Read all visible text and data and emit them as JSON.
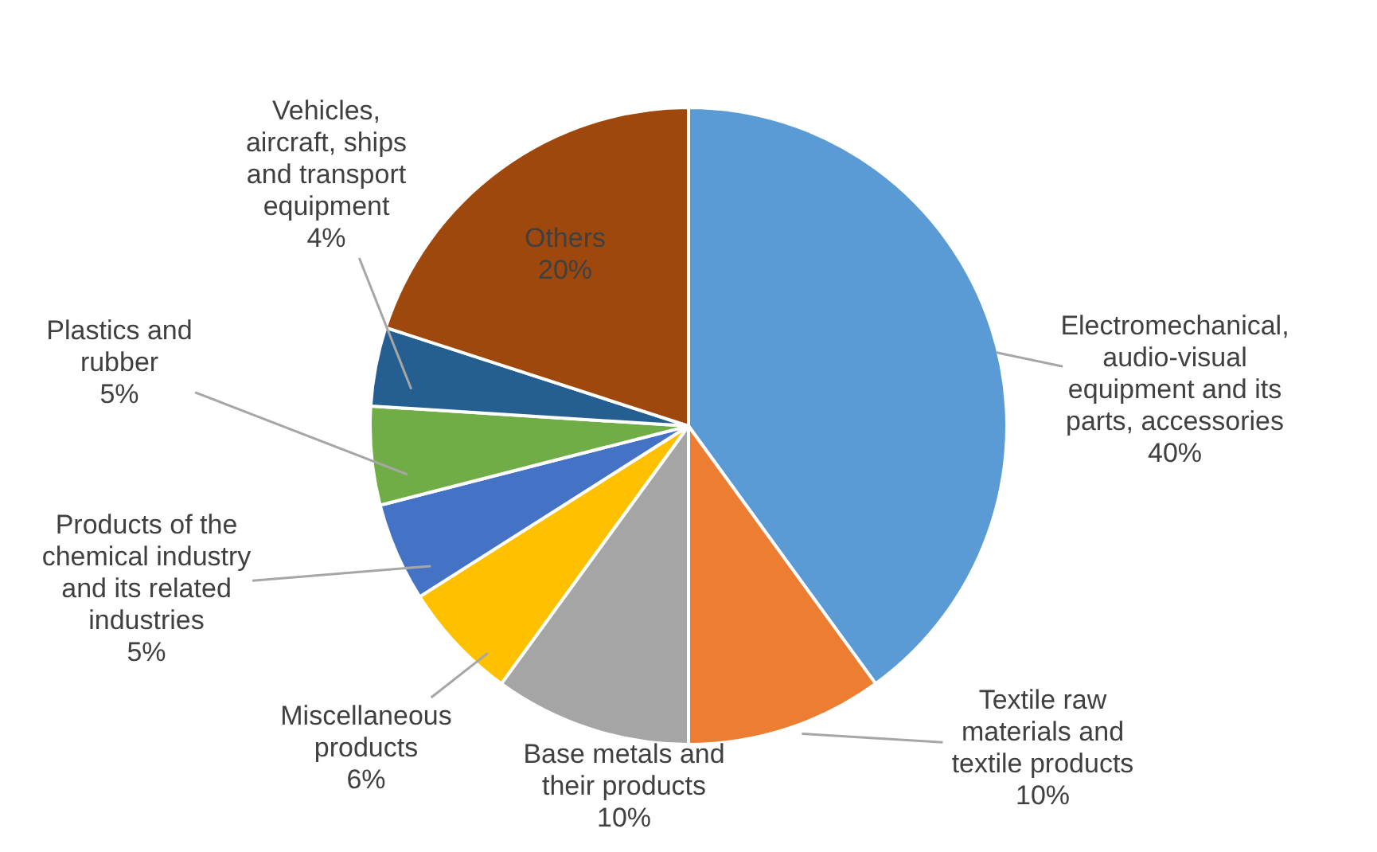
{
  "chart_data": {
    "type": "pie",
    "categories": [
      "Electromechanical, audio-visual equipment and its parts, accessories",
      "Textile raw materials and textile products",
      "Base metals and their products",
      "Miscellaneous products",
      "Products of the chemical industry and its related industries",
      "Plastics and rubber",
      "Vehicles, aircraft, ships and transport equipment",
      "Others"
    ],
    "values": [
      40,
      10,
      10,
      6,
      5,
      5,
      4,
      20
    ],
    "value_labels": [
      "40%",
      "10%",
      "10%",
      "6%",
      "5%",
      "5%",
      "4%",
      "20%"
    ],
    "colors": [
      "#5b9bd5",
      "#ed7d31",
      "#a5a5a5",
      "#ffc000",
      "#4472c4",
      "#70ad47",
      "#255e91",
      "#9e480e"
    ]
  }
}
